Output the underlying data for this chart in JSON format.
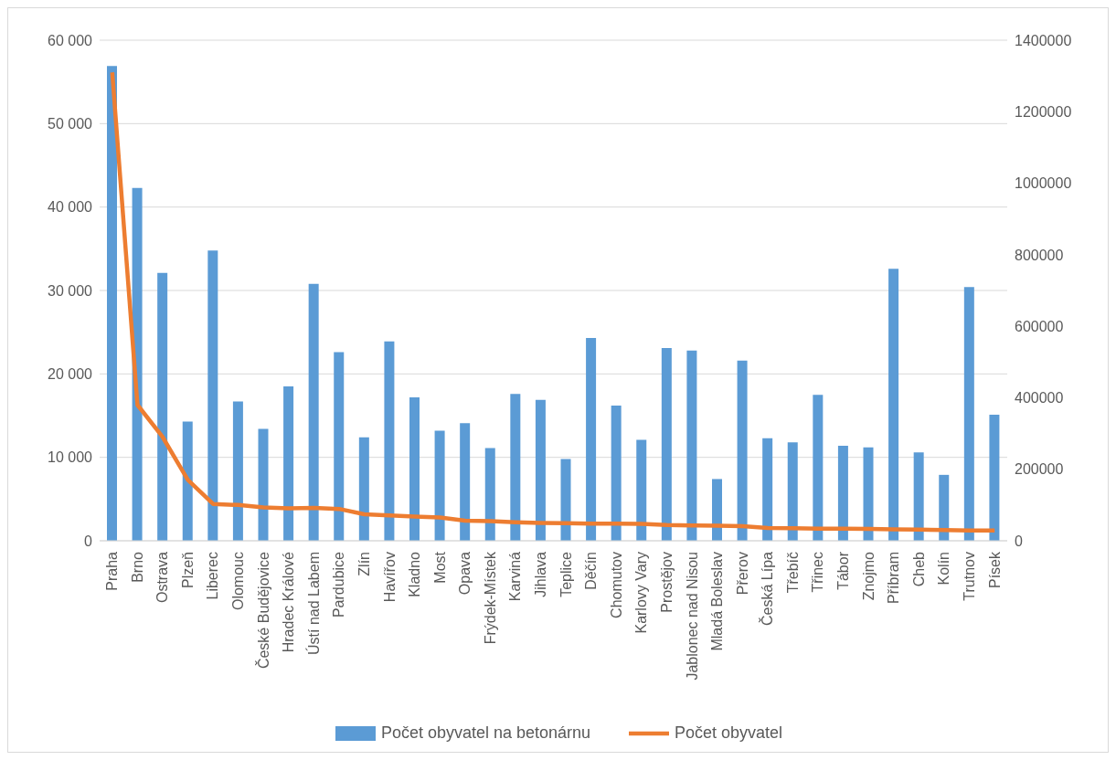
{
  "chart_data": {
    "type": "bar",
    "categories": [
      "Praha",
      "Brno",
      "Ostrava",
      "Plzeň",
      "Liberec",
      "Olomouc",
      "České Budějovice",
      "Hradec Králové",
      "Ústí nad Labem",
      "Pardubice",
      "Zlín",
      "Havířov",
      "Kladno",
      "Most",
      "Opava",
      "Frýdek-Místek",
      "Karviná",
      "Jihlava",
      "Teplice",
      "Děčín",
      "Chomutov",
      "Karlovy Vary",
      "Prostějov",
      "Jablonec nad Nisou",
      "Mladá Boleslav",
      "Přerov",
      "Česká Lípa",
      "Třebíč",
      "Třinec",
      "Tábor",
      "Znojmo",
      "Příbram",
      "Cheb",
      "Kolín",
      "Trutnov",
      "Písek"
    ],
    "series": [
      {
        "name": "Počet obyvatel na betonárnu",
        "color": "#5b9bd5",
        "values": [
          56900,
          42300,
          32100,
          14300,
          34800,
          16700,
          13400,
          18500,
          30800,
          22600,
          12400,
          23900,
          17200,
          13200,
          14100,
          11100,
          17600,
          16900,
          9800,
          24300,
          16200,
          12100,
          23100,
          22800,
          7400,
          21600,
          12300,
          11800,
          17500,
          11400,
          11200,
          32600,
          10600,
          7900,
          30400,
          15100
        ]
      },
      {
        "name": "Počet obyvatel",
        "type": "line",
        "axis": "y2",
        "color": "#ed7d31",
        "values": [
          1310000,
          380000,
          290000,
          170000,
          103000,
          100000,
          93000,
          91000,
          92000,
          89000,
          74000,
          71000,
          68000,
          65000,
          56000,
          55000,
          52000,
          50000,
          49000,
          48000,
          48000,
          47000,
          44000,
          43000,
          42000,
          41000,
          36000,
          35000,
          34000,
          34000,
          33000,
          32000,
          31000,
          30000,
          29000,
          29000
        ]
      }
    ],
    "ylim": [
      0,
      60000
    ],
    "yticks": [
      {
        "value": 0,
        "label": "0"
      },
      {
        "value": 10000,
        "label": "10 000"
      },
      {
        "value": 20000,
        "label": "20 000"
      },
      {
        "value": 30000,
        "label": "30 000"
      },
      {
        "value": 40000,
        "label": "40 000"
      },
      {
        "value": 50000,
        "label": "50 000"
      },
      {
        "value": 60000,
        "label": "60 000"
      }
    ],
    "y2lim": [
      0,
      1400000
    ],
    "y2ticks": [
      0,
      200000,
      400000,
      600000,
      800000,
      1000000,
      1200000,
      1400000
    ],
    "grid": "y",
    "legend": "bottom",
    "marker": "none"
  }
}
